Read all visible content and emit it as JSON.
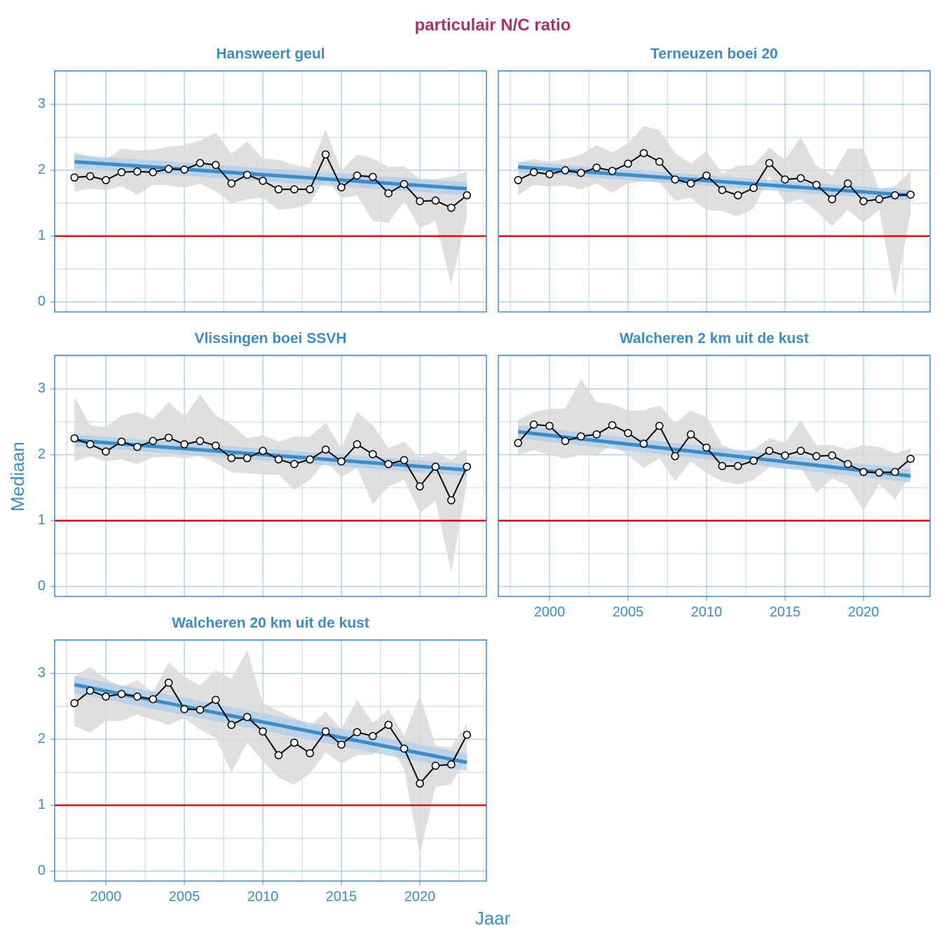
{
  "title": "particulair N/C ratio",
  "x_label": "Jaar",
  "y_label": "Mediaan",
  "chart_data": [
    {
      "type": "line",
      "title": "Hansweert geul",
      "x": [
        1998,
        1999,
        2000,
        2001,
        2002,
        2003,
        2004,
        2005,
        2006,
        2007,
        2008,
        2009,
        2010,
        2011,
        2012,
        2013,
        2014,
        2015,
        2016,
        2017,
        2018,
        2019,
        2020,
        2021,
        2022,
        2023
      ],
      "values": [
        1.89,
        1.91,
        1.85,
        1.97,
        1.98,
        1.97,
        2.02,
        2.01,
        2.11,
        2.08,
        1.8,
        1.93,
        1.84,
        1.71,
        1.71,
        1.71,
        2.24,
        1.74,
        1.92,
        1.9,
        1.65,
        1.79,
        1.53,
        1.54,
        1.43,
        1.62
      ],
      "upper": [
        2.28,
        2.21,
        2.16,
        2.33,
        2.3,
        2.31,
        2.36,
        2.38,
        2.45,
        2.57,
        2.25,
        2.44,
        2.18,
        2.16,
        2.08,
        2.04,
        2.61,
        2.0,
        2.24,
        2.18,
        2.05,
        2.06,
        1.86,
        1.87,
        1.9,
        1.98
      ],
      "lower": [
        1.68,
        1.72,
        1.7,
        1.76,
        1.63,
        1.78,
        1.77,
        1.73,
        1.8,
        1.68,
        1.5,
        1.56,
        1.58,
        1.4,
        1.42,
        1.5,
        1.88,
        1.58,
        1.62,
        1.23,
        1.2,
        1.53,
        1.12,
        1.23,
        0.27,
        1.31
      ],
      "trend": {
        "x": [
          1998,
          2023
        ],
        "values": [
          2.13,
          1.72
        ],
        "lower": [
          2.03,
          1.62
        ],
        "upper": [
          2.23,
          1.82
        ]
      },
      "hline": 1,
      "xlim": [
        1996.74,
        2024.24
      ],
      "ylim": [
        -0.15,
        3.51
      ],
      "xticks": [
        2000,
        2005,
        2010,
        2015,
        2020
      ],
      "yticks": [
        0,
        1,
        2,
        3
      ]
    },
    {
      "type": "line",
      "title": "Terneuzen boei 20",
      "x": [
        1998,
        1999,
        2000,
        2001,
        2002,
        2003,
        2004,
        2005,
        2006,
        2007,
        2008,
        2009,
        2010,
        2011,
        2012,
        2013,
        2014,
        2015,
        2016,
        2017,
        2018,
        2019,
        2020,
        2021,
        2022,
        2023
      ],
      "values": [
        1.85,
        1.97,
        1.94,
        2.0,
        1.96,
        2.04,
        1.99,
        2.1,
        2.26,
        2.13,
        1.86,
        1.8,
        1.92,
        1.7,
        1.62,
        1.73,
        2.11,
        1.86,
        1.88,
        1.78,
        1.56,
        1.8,
        1.53,
        1.56,
        1.62,
        1.63
      ],
      "upper": [
        2.12,
        2.17,
        2.13,
        2.17,
        2.24,
        2.38,
        2.27,
        2.41,
        2.67,
        2.61,
        2.26,
        2.1,
        2.29,
        1.95,
        2.07,
        2.08,
        2.34,
        2.16,
        2.5,
        2.07,
        1.92,
        2.33,
        2.33,
        1.71,
        1.76,
        1.98
      ],
      "lower": [
        1.62,
        1.78,
        1.75,
        1.77,
        1.71,
        1.8,
        1.66,
        1.8,
        1.83,
        1.81,
        1.54,
        1.58,
        1.4,
        1.38,
        1.3,
        1.42,
        1.91,
        1.5,
        1.56,
        1.38,
        1.15,
        1.4,
        1.2,
        1.4,
        0.08,
        1.35
      ],
      "trend": {
        "x": [
          1998,
          2023
        ],
        "values": [
          2.05,
          1.62
        ],
        "lower": [
          1.97,
          1.54
        ],
        "upper": [
          2.13,
          1.7
        ]
      },
      "hline": 1,
      "xlim": [
        1996.74,
        2024.24
      ],
      "ylim": [
        -0.15,
        3.51
      ],
      "xticks": [
        2000,
        2005,
        2010,
        2015,
        2020
      ],
      "yticks": [
        0,
        1,
        2,
        3
      ]
    },
    {
      "type": "line",
      "title": "Vlissingen boei SSVH",
      "x": [
        1998,
        1999,
        2000,
        2001,
        2002,
        2003,
        2004,
        2005,
        2006,
        2007,
        2008,
        2009,
        2010,
        2011,
        2012,
        2013,
        2014,
        2015,
        2016,
        2017,
        2018,
        2019,
        2020,
        2021,
        2022,
        2023
      ],
      "values": [
        2.25,
        2.16,
        2.05,
        2.2,
        2.12,
        2.21,
        2.26,
        2.16,
        2.21,
        2.14,
        1.95,
        1.95,
        2.06,
        1.93,
        1.86,
        1.93,
        2.08,
        1.9,
        2.16,
        2.01,
        1.86,
        1.92,
        1.52,
        1.82,
        1.31,
        1.82
      ],
      "upper": [
        2.88,
        2.45,
        2.42,
        2.6,
        2.65,
        2.55,
        2.8,
        2.58,
        2.91,
        2.6,
        2.46,
        2.25,
        2.3,
        2.2,
        2.28,
        2.27,
        2.49,
        2.1,
        2.65,
        2.45,
        2.1,
        2.2,
        1.95,
        2.05,
        1.92,
        2.1
      ],
      "lower": [
        1.9,
        1.98,
        1.9,
        1.93,
        1.86,
        1.96,
        1.97,
        1.95,
        1.98,
        1.88,
        1.73,
        1.72,
        1.7,
        1.7,
        1.47,
        1.62,
        1.9,
        1.66,
        1.8,
        1.25,
        1.52,
        1.62,
        1.12,
        1.3,
        0.22,
        1.58
      ],
      "trend": {
        "x": [
          1998,
          2023
        ],
        "values": [
          2.22,
          1.77
        ],
        "lower": [
          2.13,
          1.68
        ],
        "upper": [
          2.31,
          1.86
        ]
      },
      "hline": 1,
      "xlim": [
        1996.74,
        2024.24
      ],
      "ylim": [
        -0.15,
        3.51
      ],
      "xticks": [
        2000,
        2005,
        2010,
        2015,
        2020
      ],
      "yticks": [
        0,
        1,
        2,
        3
      ]
    },
    {
      "type": "line",
      "title": "Walcheren 2 km uit de kust",
      "x": [
        1998,
        1999,
        2000,
        2001,
        2002,
        2003,
        2004,
        2005,
        2006,
        2007,
        2008,
        2009,
        2010,
        2011,
        2012,
        2013,
        2014,
        2015,
        2016,
        2017,
        2018,
        2019,
        2020,
        2021,
        2022,
        2023
      ],
      "values": [
        2.18,
        2.46,
        2.44,
        2.21,
        2.28,
        2.31,
        2.45,
        2.33,
        2.17,
        2.44,
        1.98,
        2.31,
        2.11,
        1.83,
        1.83,
        1.91,
        2.06,
        1.99,
        2.06,
        1.98,
        1.99,
        1.86,
        1.74,
        1.73,
        1.74,
        1.94
      ],
      "upper": [
        2.53,
        2.65,
        2.7,
        2.7,
        3.15,
        2.8,
        2.77,
        2.67,
        2.68,
        2.75,
        2.48,
        2.67,
        2.58,
        2.15,
        2.05,
        2.08,
        2.25,
        2.18,
        2.52,
        2.15,
        2.15,
        2.08,
        2.15,
        2.12,
        2.02,
        2.1
      ],
      "lower": [
        2.0,
        2.07,
        2.0,
        1.94,
        2.0,
        2.0,
        2.15,
        2.0,
        1.8,
        1.95,
        1.6,
        1.9,
        1.72,
        1.6,
        1.55,
        1.62,
        1.81,
        1.78,
        1.8,
        1.43,
        1.64,
        1.54,
        1.15,
        1.56,
        1.32,
        1.7
      ],
      "trend": {
        "x": [
          1998,
          2023
        ],
        "values": [
          2.35,
          1.68
        ],
        "lower": [
          2.25,
          1.58
        ],
        "upper": [
          2.45,
          1.78
        ]
      },
      "hline": 1,
      "xlim": [
        1996.74,
        2024.24
      ],
      "ylim": [
        -0.15,
        3.51
      ],
      "xticks": [
        2000,
        2005,
        2010,
        2015,
        2020
      ],
      "yticks": [
        0,
        1,
        2,
        3
      ]
    },
    {
      "type": "line",
      "title": "Walcheren 20 km uit de kust",
      "x": [
        1998,
        1999,
        2000,
        2001,
        2002,
        2003,
        2004,
        2005,
        2006,
        2007,
        2008,
        2009,
        2010,
        2011,
        2012,
        2013,
        2014,
        2015,
        2016,
        2017,
        2018,
        2019,
        2020,
        2021,
        2022,
        2023
      ],
      "values": [
        2.55,
        2.74,
        2.65,
        2.69,
        2.65,
        2.61,
        2.86,
        2.46,
        2.45,
        2.6,
        2.22,
        2.34,
        2.12,
        1.76,
        1.95,
        1.79,
        2.12,
        1.92,
        2.11,
        2.05,
        2.22,
        1.86,
        1.33,
        1.6,
        1.62,
        2.07
      ],
      "upper": [
        2.95,
        3.1,
        2.92,
        2.8,
        2.9,
        2.72,
        3.17,
        2.95,
        2.82,
        3.05,
        2.92,
        3.35,
        2.55,
        2.43,
        2.33,
        2.2,
        2.42,
        2.16,
        2.6,
        2.25,
        2.45,
        2.06,
        2.67,
        1.91,
        1.88,
        2.25
      ],
      "lower": [
        2.2,
        2.1,
        2.28,
        2.28,
        2.38,
        2.3,
        2.22,
        2.32,
        2.15,
        2.02,
        1.5,
        1.95,
        1.67,
        1.42,
        1.31,
        1.48,
        1.8,
        1.63,
        1.76,
        1.77,
        1.95,
        1.55,
        0.25,
        1.28,
        1.32,
        1.73
      ],
      "trend": {
        "x": [
          1998,
          2023
        ],
        "values": [
          2.83,
          1.65
        ],
        "lower": [
          2.7,
          1.52
        ],
        "upper": [
          2.96,
          1.78
        ]
      },
      "hline": 1,
      "xlim": [
        1996.74,
        2024.24
      ],
      "ylim": [
        -0.15,
        3.51
      ],
      "xticks": [
        2000,
        2005,
        2010,
        2015,
        2020
      ],
      "yticks": [
        0,
        1,
        2,
        3
      ]
    }
  ]
}
